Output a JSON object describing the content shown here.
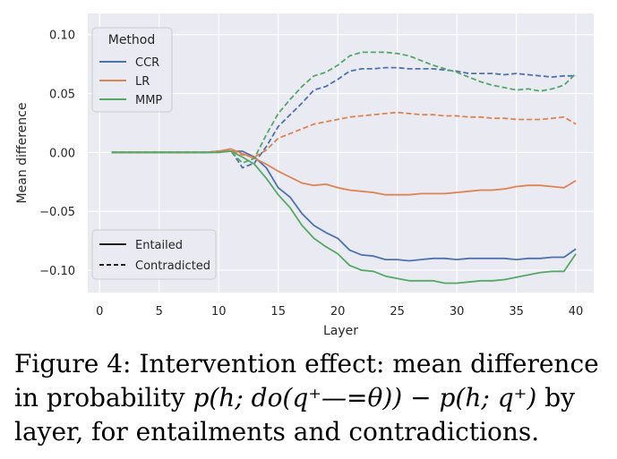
{
  "chart_data": {
    "type": "line",
    "xlabel": "Layer",
    "ylabel": "Mean difference",
    "xlim": [
      -1,
      41.5
    ],
    "ylim": [
      -0.119,
      0.118
    ],
    "xticks": [
      0,
      5,
      10,
      15,
      20,
      25,
      30,
      35,
      40
    ],
    "yticks": [
      0.1,
      0.05,
      0.0,
      -0.05,
      -0.1
    ],
    "ytick_labels": [
      "0.10",
      "0.05",
      "0.00",
      "−0.05",
      "−0.10"
    ],
    "grid": true,
    "colors": {
      "CCR": "#4c72b0",
      "LR": "#dd8452",
      "MMP": "#55a868",
      "background": "#eaeaf2"
    },
    "x": [
      1,
      2,
      3,
      4,
      5,
      6,
      7,
      8,
      9,
      10,
      11,
      12,
      13,
      14,
      15,
      16,
      17,
      18,
      19,
      20,
      21,
      22,
      23,
      24,
      25,
      26,
      27,
      28,
      29,
      30,
      31,
      32,
      33,
      34,
      35,
      36,
      37,
      38,
      39,
      40
    ],
    "series": [
      {
        "name": "CCR",
        "condition": "Entailed",
        "values": [
          0,
          0,
          0,
          0,
          0,
          0,
          0,
          0,
          0,
          0.001,
          0.001,
          0.001,
          -0.004,
          -0.013,
          -0.03,
          -0.038,
          -0.052,
          -0.062,
          -0.068,
          -0.073,
          -0.083,
          -0.087,
          -0.088,
          -0.091,
          -0.091,
          -0.092,
          -0.091,
          -0.09,
          -0.09,
          -0.091,
          -0.09,
          -0.09,
          -0.09,
          -0.09,
          -0.091,
          -0.09,
          -0.09,
          -0.089,
          -0.089,
          -0.082
        ]
      },
      {
        "name": "CCR",
        "condition": "Contradicted",
        "values": [
          0,
          0,
          0,
          0,
          0,
          0,
          0,
          0,
          0,
          0.001,
          0.002,
          -0.013,
          -0.009,
          0.005,
          0.022,
          0.032,
          0.042,
          0.053,
          0.056,
          0.062,
          0.069,
          0.071,
          0.071,
          0.072,
          0.072,
          0.071,
          0.071,
          0.071,
          0.07,
          0.069,
          0.067,
          0.067,
          0.067,
          0.066,
          0.067,
          0.066,
          0.065,
          0.064,
          0.065,
          0.065
        ]
      },
      {
        "name": "LR",
        "condition": "Entailed",
        "values": [
          0,
          0,
          0,
          0,
          0,
          0,
          0,
          0,
          0,
          0.001,
          0.003,
          -0.001,
          -0.005,
          -0.01,
          -0.016,
          -0.021,
          -0.026,
          -0.028,
          -0.027,
          -0.03,
          -0.032,
          -0.033,
          -0.034,
          -0.036,
          -0.036,
          -0.036,
          -0.035,
          -0.035,
          -0.035,
          -0.034,
          -0.033,
          -0.032,
          -0.032,
          -0.031,
          -0.029,
          -0.028,
          -0.028,
          -0.029,
          -0.03,
          -0.024
        ]
      },
      {
        "name": "LR",
        "condition": "Contradicted",
        "values": [
          0,
          0,
          0,
          0,
          0,
          0,
          0,
          0,
          0,
          0.001,
          0.002,
          -0.002,
          -0.004,
          0.002,
          0.012,
          0.016,
          0.02,
          0.024,
          0.026,
          0.028,
          0.03,
          0.031,
          0.032,
          0.033,
          0.034,
          0.033,
          0.032,
          0.032,
          0.031,
          0.031,
          0.03,
          0.03,
          0.029,
          0.029,
          0.028,
          0.028,
          0.028,
          0.029,
          0.03,
          0.024
        ]
      },
      {
        "name": "MMP",
        "condition": "Entailed",
        "values": [
          0,
          0,
          0,
          0,
          0,
          0,
          0,
          0,
          0,
          0,
          0.001,
          -0.004,
          -0.01,
          -0.022,
          -0.036,
          -0.047,
          -0.062,
          -0.073,
          -0.08,
          -0.086,
          -0.096,
          -0.1,
          -0.101,
          -0.105,
          -0.107,
          -0.109,
          -0.109,
          -0.109,
          -0.111,
          -0.111,
          -0.11,
          -0.109,
          -0.109,
          -0.108,
          -0.106,
          -0.104,
          -0.102,
          -0.101,
          -0.101,
          -0.086
        ]
      },
      {
        "name": "MMP",
        "condition": "Contradicted",
        "values": [
          0,
          0,
          0,
          0,
          0,
          0,
          0,
          0,
          0,
          0,
          0.001,
          -0.009,
          -0.005,
          0.015,
          0.033,
          0.045,
          0.056,
          0.065,
          0.068,
          0.074,
          0.082,
          0.085,
          0.085,
          0.085,
          0.084,
          0.082,
          0.078,
          0.074,
          0.071,
          0.068,
          0.064,
          0.06,
          0.057,
          0.055,
          0.053,
          0.054,
          0.052,
          0.054,
          0.057,
          0.067
        ]
      }
    ],
    "legend_color": {
      "title": "Method",
      "entries": [
        "CCR",
        "LR",
        "MMP"
      ],
      "loc": "upper-left"
    },
    "legend_style": {
      "entries": [
        "Entailed",
        "Contradicted"
      ],
      "loc": "lower-left"
    }
  },
  "caption": {
    "line1": "Figure 4: Intervention effect: mean difference",
    "line2_pre": "in probability ",
    "line2_math": "p(h; do(q⁺—=θ)) − p(h; q⁺)",
    "line2_post": " by",
    "line3": "layer, for entailments and contradictions."
  }
}
